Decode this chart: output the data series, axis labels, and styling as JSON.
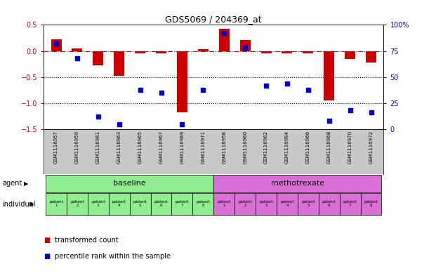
{
  "title": "GDS5069 / 204369_at",
  "samples": [
    "GSM1116957",
    "GSM1116959",
    "GSM1116961",
    "GSM1116963",
    "GSM1116965",
    "GSM1116967",
    "GSM1116969",
    "GSM1116971",
    "GSM1116958",
    "GSM1116960",
    "GSM1116962",
    "GSM1116964",
    "GSM1116966",
    "GSM1116968",
    "GSM1116970",
    "GSM1116972"
  ],
  "transformed_count": [
    0.22,
    0.05,
    -0.28,
    -0.48,
    -0.05,
    -0.05,
    -1.18,
    0.04,
    0.43,
    0.21,
    -0.05,
    -0.05,
    -0.05,
    -0.95,
    -0.15,
    -0.22
  ],
  "percentile_rank": [
    82,
    68,
    12,
    5,
    38,
    35,
    5,
    38,
    92,
    78,
    42,
    44,
    38,
    8,
    18,
    16
  ],
  "agent_groups": [
    {
      "label": "baseline",
      "start": 0,
      "end": 7,
      "color": "#90ee90"
    },
    {
      "label": "methotrexate",
      "start": 8,
      "end": 15,
      "color": "#da70d6"
    }
  ],
  "bar_color": "#cc0000",
  "dot_color": "#0000cc",
  "ylim_left": [
    -1.5,
    0.5
  ],
  "ylim_right": [
    0,
    100
  ],
  "yticks_left": [
    -1.5,
    -1.0,
    -0.5,
    0.0,
    0.5
  ],
  "yticks_right": [
    0,
    25,
    50,
    75,
    100
  ],
  "ytick_labels_right": [
    "0",
    "25",
    "50",
    "75",
    "100%"
  ],
  "hline_dashed_y": 0.0,
  "hline_dotted_y1": -0.5,
  "hline_dotted_y2": -1.0,
  "background_color": "#ffffff",
  "sample_bg_color": "#c8c8c8",
  "bar_width": 0.5,
  "legend_bar_label": "transformed count",
  "legend_dot_label": "percentile rank within the sample",
  "xlim": [
    -0.6,
    15.6
  ]
}
